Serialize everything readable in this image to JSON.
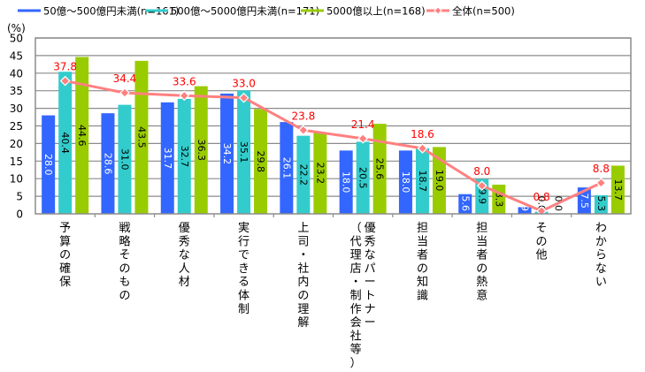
{
  "chart_data": {
    "type": "bar",
    "title": "",
    "xlabel": "",
    "ylabel": "(%)",
    "ylim": [
      0,
      50
    ],
    "yticks": [
      0,
      5,
      10,
      15,
      20,
      25,
      30,
      35,
      40,
      45,
      50
    ],
    "grid": true,
    "legend_position": "top",
    "categories": [
      "予算の確保",
      "戦略そのもの",
      "優秀な人材",
      "実行できる体制",
      "上司・社内の理解",
      "優秀なパートナー（代理店・制作会社等）",
      "担当者の知識",
      "担当者の熱意",
      "その他",
      "わからない"
    ],
    "category_lines": [
      [
        "予算の確保"
      ],
      [
        "戦略そのもの"
      ],
      [
        "優秀な人材"
      ],
      [
        "実行できる体制"
      ],
      [
        "上司・社内の理解"
      ],
      [
        "優秀なパートナー",
        "（代理店・制作会社等）"
      ],
      [
        "担当者の知識"
      ],
      [
        "担当者の熱意"
      ],
      [
        "その他"
      ],
      [
        "わからない"
      ]
    ],
    "series": [
      {
        "name": "50億～500億円未満(n=161)",
        "kind": "bar",
        "color": "#3366ff",
        "label_color": "#ffffff",
        "values": [
          28.0,
          28.6,
          31.7,
          34.2,
          26.1,
          18.0,
          18.0,
          5.6,
          1.9,
          7.5
        ]
      },
      {
        "name": "500億～5000億円未満(n=171)",
        "kind": "bar",
        "color": "#33cccc",
        "label_color": "#000000",
        "values": [
          40.4,
          31.0,
          32.7,
          35.1,
          22.2,
          20.5,
          18.7,
          9.9,
          0.6,
          5.3
        ]
      },
      {
        "name": "5000億以上(n=168)",
        "kind": "bar",
        "color": "#99cc00",
        "label_color": "#000000",
        "values": [
          44.6,
          43.5,
          36.3,
          29.8,
          23.2,
          25.6,
          19.0,
          8.3,
          0.0,
          13.7
        ]
      },
      {
        "name": "全体(n=500)",
        "kind": "line",
        "color": "#ff8080",
        "label_color": "#ff0000",
        "values": [
          37.8,
          34.4,
          33.6,
          33.0,
          23.8,
          21.4,
          18.6,
          8.0,
          0.8,
          8.8
        ]
      }
    ]
  }
}
